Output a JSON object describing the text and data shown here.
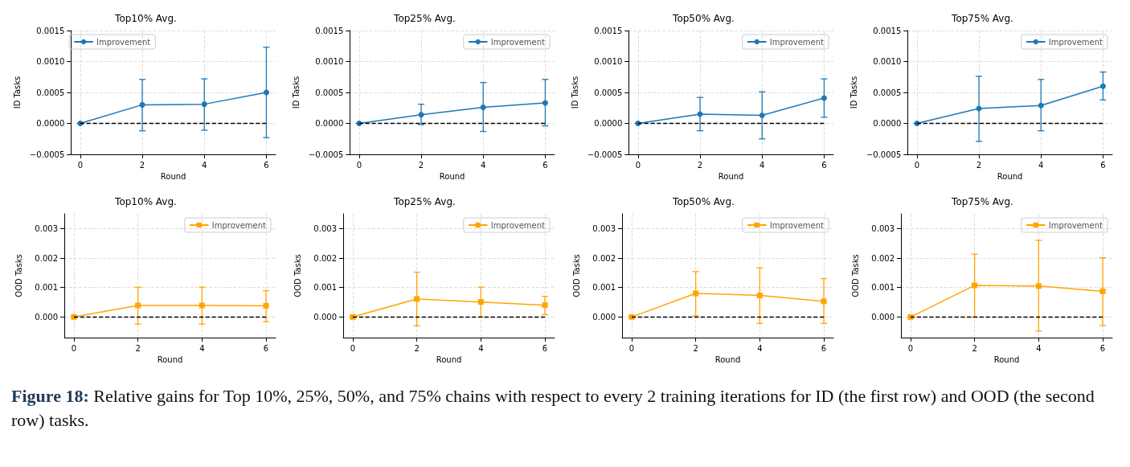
{
  "chart_data": [
    {
      "type": "line",
      "title": "Top10% Avg.",
      "xlabel": "Round",
      "ylabel": "ID Tasks",
      "x": [
        0,
        2,
        4,
        6
      ],
      "xlim": [
        -0.3,
        6.3
      ],
      "xticks": [
        0,
        2,
        4,
        6
      ],
      "ylim": [
        -0.0005,
        0.0015
      ],
      "yticks": [
        {
          "value": -0.0005,
          "label": "−0.0005"
        },
        {
          "value": 0,
          "label": "0.0000"
        },
        {
          "value": 0.0005,
          "label": "0.0005"
        },
        {
          "value": 0.001,
          "label": "0.0010"
        },
        {
          "value": 0.0015,
          "label": "0.0015"
        }
      ],
      "grid": true,
      "legend": "top left",
      "marker": "circle",
      "series": [
        {
          "name": "Improvement",
          "color": "#1f77b4",
          "values": [
            0,
            0.0003,
            0.00031,
            0.0005
          ],
          "errors": [
            [
              0,
              0
            ],
            [
              -0.00012,
              0.00071
            ],
            [
              -0.00011,
              0.00072
            ],
            [
              -0.00023,
              0.00123
            ]
          ]
        }
      ],
      "ref_lines": [
        {
          "axis": "y",
          "value": 0,
          "color": "#000000",
          "line_style": "dashed"
        }
      ]
    },
    {
      "type": "line",
      "title": "Top25% Avg.",
      "xlabel": "Round",
      "ylabel": "ID Tasks",
      "x": [
        0,
        2,
        4,
        6
      ],
      "xlim": [
        -0.3,
        6.3
      ],
      "xticks": [
        0,
        2,
        4,
        6
      ],
      "ylim": [
        -0.0005,
        0.0015
      ],
      "yticks": [
        {
          "value": -0.0005,
          "label": "−0.0005"
        },
        {
          "value": 0,
          "label": "0.0000"
        },
        {
          "value": 0.0005,
          "label": "0.0005"
        },
        {
          "value": 0.001,
          "label": "0.0010"
        },
        {
          "value": 0.0015,
          "label": "0.0015"
        }
      ],
      "grid": true,
      "legend": "top right",
      "marker": "circle",
      "series": [
        {
          "name": "Improvement",
          "color": "#1f77b4",
          "values": [
            0,
            0.00014,
            0.00026,
            0.00033
          ],
          "errors": [
            [
              0,
              0
            ],
            [
              -2e-05,
              0.00031
            ],
            [
              -0.00013,
              0.00066
            ],
            [
              -4e-05,
              0.00071
            ]
          ]
        }
      ],
      "ref_lines": [
        {
          "axis": "y",
          "value": 0,
          "color": "#000000",
          "line_style": "dashed"
        }
      ]
    },
    {
      "type": "line",
      "title": "Top50% Avg.",
      "xlabel": "Round",
      "ylabel": "ID Tasks",
      "x": [
        0,
        2,
        4,
        6
      ],
      "xlim": [
        -0.3,
        6.3
      ],
      "xticks": [
        0,
        2,
        4,
        6
      ],
      "ylim": [
        -0.0005,
        0.0015
      ],
      "yticks": [
        {
          "value": -0.0005,
          "label": "−0.0005"
        },
        {
          "value": 0,
          "label": "0.0000"
        },
        {
          "value": 0.0005,
          "label": "0.0005"
        },
        {
          "value": 0.001,
          "label": "0.0010"
        },
        {
          "value": 0.0015,
          "label": "0.0015"
        }
      ],
      "grid": true,
      "legend": "top right",
      "marker": "circle",
      "series": [
        {
          "name": "Improvement",
          "color": "#1f77b4",
          "values": [
            0,
            0.00015,
            0.00013,
            0.00041
          ],
          "errors": [
            [
              0,
              0
            ],
            [
              -0.00012,
              0.00042
            ],
            [
              -0.00025,
              0.00051
            ],
            [
              0.0001,
              0.00072
            ]
          ]
        }
      ],
      "ref_lines": [
        {
          "axis": "y",
          "value": 0,
          "color": "#000000",
          "line_style": "dashed"
        }
      ]
    },
    {
      "type": "line",
      "title": "Top75% Avg.",
      "xlabel": "Round",
      "ylabel": "ID Tasks",
      "x": [
        0,
        2,
        4,
        6
      ],
      "xlim": [
        -0.3,
        6.3
      ],
      "xticks": [
        0,
        2,
        4,
        6
      ],
      "ylim": [
        -0.0005,
        0.0015
      ],
      "yticks": [
        {
          "value": -0.0005,
          "label": "−0.0005"
        },
        {
          "value": 0,
          "label": "0.0000"
        },
        {
          "value": 0.0005,
          "label": "0.0005"
        },
        {
          "value": 0.001,
          "label": "0.0010"
        },
        {
          "value": 0.0015,
          "label": "0.0015"
        }
      ],
      "grid": true,
      "legend": "top right",
      "marker": "circle",
      "series": [
        {
          "name": "Improvement",
          "color": "#1f77b4",
          "values": [
            0,
            0.00024,
            0.00029,
            0.0006
          ],
          "errors": [
            [
              0,
              0
            ],
            [
              -0.00029,
              0.00076
            ],
            [
              -0.00012,
              0.00071
            ],
            [
              0.00038,
              0.00083
            ]
          ]
        }
      ],
      "ref_lines": [
        {
          "axis": "y",
          "value": 0,
          "color": "#000000",
          "line_style": "dashed"
        }
      ]
    },
    {
      "type": "line",
      "title": "Top10% Avg.",
      "xlabel": "Round",
      "ylabel": "OOD Tasks",
      "x": [
        0,
        2,
        4,
        6
      ],
      "xlim": [
        -0.3,
        6.3
      ],
      "xticks": [
        0,
        2,
        4,
        6
      ],
      "ylim": [
        -0.0007,
        0.0035
      ],
      "yticks": [
        {
          "value": 0,
          "label": "0.000"
        },
        {
          "value": 0.001,
          "label": "0.001"
        },
        {
          "value": 0.002,
          "label": "0.002"
        },
        {
          "value": 0.003,
          "label": "0.003"
        }
      ],
      "grid": true,
      "legend": "top right",
      "marker": "square",
      "series": [
        {
          "name": "Improvement",
          "color": "#ffa500",
          "values": [
            0,
            0.00039,
            0.00039,
            0.00038
          ],
          "errors": [
            [
              0,
              0
            ],
            [
              -0.00024,
              0.00101
            ],
            [
              -0.00024,
              0.00101
            ],
            [
              -0.00016,
              0.00089
            ]
          ]
        }
      ],
      "ref_lines": [
        {
          "axis": "y",
          "value": 0,
          "color": "#000000",
          "line_style": "dashed"
        }
      ]
    },
    {
      "type": "line",
      "title": "Top25% Avg.",
      "xlabel": "Round",
      "ylabel": "OOD Tasks",
      "x": [
        0,
        2,
        4,
        6
      ],
      "xlim": [
        -0.3,
        6.3
      ],
      "xticks": [
        0,
        2,
        4,
        6
      ],
      "ylim": [
        -0.0007,
        0.0035
      ],
      "yticks": [
        {
          "value": 0,
          "label": "0.000"
        },
        {
          "value": 0.001,
          "label": "0.001"
        },
        {
          "value": 0.002,
          "label": "0.002"
        },
        {
          "value": 0.003,
          "label": "0.003"
        }
      ],
      "grid": true,
      "legend": "top right",
      "marker": "square",
      "series": [
        {
          "name": "Improvement",
          "color": "#ffa500",
          "values": [
            0,
            0.00061,
            0.00051,
            0.0004
          ],
          "errors": [
            [
              0,
              0
            ],
            [
              -0.0003,
              0.00152
            ],
            [
              0,
              0.00101
            ],
            [
              8e-05,
              0.0007
            ]
          ]
        }
      ],
      "ref_lines": [
        {
          "axis": "y",
          "value": 0,
          "color": "#000000",
          "line_style": "dashed"
        }
      ]
    },
    {
      "type": "line",
      "title": "Top50% Avg.",
      "xlabel": "Round",
      "ylabel": "OOD Tasks",
      "x": [
        0,
        2,
        4,
        6
      ],
      "xlim": [
        -0.3,
        6.3
      ],
      "xticks": [
        0,
        2,
        4,
        6
      ],
      "ylim": [
        -0.0007,
        0.0035
      ],
      "yticks": [
        {
          "value": 0,
          "label": "0.000"
        },
        {
          "value": 0.001,
          "label": "0.001"
        },
        {
          "value": 0.002,
          "label": "0.002"
        },
        {
          "value": 0.003,
          "label": "0.003"
        }
      ],
      "grid": true,
      "legend": "top right",
      "marker": "square",
      "series": [
        {
          "name": "Improvement",
          "color": "#ffa500",
          "values": [
            0,
            0.0008,
            0.00073,
            0.00053
          ],
          "errors": [
            [
              0,
              0
            ],
            [
              4e-05,
              0.00154
            ],
            [
              -0.00022,
              0.00167
            ],
            [
              -0.00022,
              0.0013
            ]
          ]
        }
      ],
      "ref_lines": [
        {
          "axis": "y",
          "value": 0,
          "color": "#000000",
          "line_style": "dashed"
        }
      ]
    },
    {
      "type": "line",
      "title": "Top75% Avg.",
      "xlabel": "Round",
      "ylabel": "OOD Tasks",
      "x": [
        0,
        2,
        4,
        6
      ],
      "xlim": [
        -0.3,
        6.3
      ],
      "xticks": [
        0,
        2,
        4,
        6
      ],
      "ylim": [
        -0.0007,
        0.0035
      ],
      "yticks": [
        {
          "value": 0,
          "label": "0.000"
        },
        {
          "value": 0.001,
          "label": "0.001"
        },
        {
          "value": 0.002,
          "label": "0.002"
        },
        {
          "value": 0.003,
          "label": "0.003"
        }
      ],
      "grid": true,
      "legend": "top right",
      "marker": "square",
      "series": [
        {
          "name": "Improvement",
          "color": "#ffa500",
          "values": [
            0,
            0.00107,
            0.00105,
            0.00087
          ],
          "errors": [
            [
              0,
              0
            ],
            [
              0,
              0.00213
            ],
            [
              -0.00048,
              0.0026
            ],
            [
              -0.00029,
              0.00201
            ]
          ]
        }
      ],
      "ref_lines": [
        {
          "axis": "y",
          "value": 0,
          "color": "#000000",
          "line_style": "dashed"
        }
      ]
    },
    {
      "type": "other",
      "annotations": [
        "Figure 18:",
        "Relative gains for Top 10%, 25%, 50%, and 75% chains with respect to every 2 training iterations for ID (the first row) and OOD (the second row) tasks."
      ]
    }
  ]
}
